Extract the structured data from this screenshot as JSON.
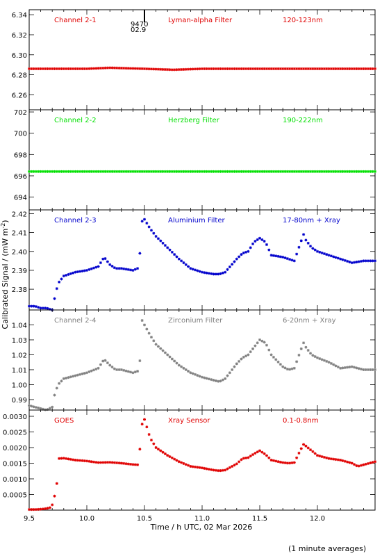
{
  "figure": {
    "xlabel": "Time / h UTC, 02 Mar 2026",
    "ylabel": "Calibrated Signal / (mW m",
    "ylabel_sup": "-2",
    "ylabel_close": ")",
    "footnote": "(1 minute averages)",
    "marker_labels": [
      "9470",
      "02.9"
    ]
  },
  "chart_data": [
    {
      "type": "scatter",
      "channel": "Channel 2-1",
      "filter": "Lyman-alpha Filter",
      "band": "120-123nm",
      "color": "#e00000",
      "xlim": [
        9.5,
        12.5
      ],
      "ylim": [
        6.245,
        6.345
      ],
      "yticks": [
        "6.26",
        "6.28",
        "6.30",
        "6.32",
        "6.34"
      ],
      "xticks": [
        "9.5",
        "10.0",
        "10.5",
        "11.0",
        "11.5",
        "12.0"
      ],
      "x": [
        9.5,
        9.75,
        10.0,
        10.2,
        10.5,
        10.75,
        11.0,
        11.25,
        11.5,
        11.75,
        12.0,
        12.25,
        12.5
      ],
      "y": [
        6.286,
        6.286,
        6.286,
        6.287,
        6.286,
        6.285,
        6.286,
        6.286,
        6.286,
        6.286,
        6.286,
        6.286,
        6.286
      ]
    },
    {
      "type": "scatter",
      "channel": "Channel 2-2",
      "filter": "Herzberg Filter",
      "band": "190-222nm",
      "color": "#00e000",
      "xlim": [
        9.5,
        12.5
      ],
      "ylim": [
        692.8,
        702.2
      ],
      "yticks": [
        "694",
        "696",
        "698",
        "700",
        "702"
      ],
      "xticks": [
        "9.5",
        "10.0",
        "10.5",
        "11.0",
        "11.5",
        "12.0"
      ],
      "x": [
        9.5,
        9.75,
        10.0,
        10.25,
        10.5,
        10.75,
        11.0,
        11.25,
        11.5,
        11.75,
        12.0,
        12.25,
        12.5
      ],
      "y": [
        696.4,
        696.4,
        696.4,
        696.4,
        696.4,
        696.4,
        696.4,
        696.4,
        696.4,
        696.4,
        696.4,
        696.4,
        696.4
      ]
    },
    {
      "type": "scatter",
      "channel": "Channel 2-3",
      "filter": "Aluminium Filter",
      "band": "17-80nm + Xray",
      "color": "#0000cc",
      "xlim": [
        9.5,
        12.5
      ],
      "ylim": [
        2.369,
        2.422
      ],
      "yticks": [
        "2.38",
        "2.39",
        "2.40",
        "2.41",
        "2.42"
      ],
      "xticks": [
        "9.5",
        "10.0",
        "10.5",
        "11.0",
        "11.5",
        "12.0"
      ],
      "x": [
        9.5,
        9.55,
        9.6,
        9.65,
        9.7,
        9.72,
        9.75,
        9.8,
        9.9,
        10.0,
        10.1,
        10.15,
        10.2,
        10.25,
        10.3,
        10.4,
        10.44,
        10.46,
        10.48,
        10.5,
        10.55,
        10.6,
        10.7,
        10.8,
        10.9,
        11.0,
        11.1,
        11.15,
        11.2,
        11.3,
        11.35,
        11.4,
        11.45,
        11.5,
        11.55,
        11.6,
        11.7,
        11.75,
        11.8,
        11.85,
        11.88,
        11.9,
        11.95,
        12.0,
        12.1,
        12.2,
        12.3,
        12.4,
        12.5
      ],
      "y": [
        2.371,
        2.371,
        2.37,
        2.37,
        2.369,
        2.375,
        2.383,
        2.387,
        2.389,
        2.39,
        2.392,
        2.397,
        2.393,
        2.391,
        2.391,
        2.39,
        2.391,
        2.399,
        2.416,
        2.417,
        2.412,
        2.408,
        2.402,
        2.396,
        2.391,
        2.389,
        2.388,
        2.388,
        2.389,
        2.396,
        2.399,
        2.4,
        2.405,
        2.407,
        2.405,
        2.398,
        2.397,
        2.396,
        2.395,
        2.404,
        2.409,
        2.406,
        2.402,
        2.4,
        2.398,
        2.396,
        2.394,
        2.395,
        2.395
      ]
    },
    {
      "type": "scatter",
      "channel": "Channel 2-4",
      "filter": "Zirconium Filter",
      "band": "6-20nm + Xray",
      "color": "#808080",
      "xlim": [
        9.5,
        12.5
      ],
      "ylim": [
        0.983,
        1.05
      ],
      "yticks": [
        "0.99",
        "1.00",
        "1.01",
        "1.02",
        "1.03",
        "1.04"
      ],
      "xticks": [
        "9.5",
        "10.0",
        "10.5",
        "11.0",
        "11.5",
        "12.0"
      ],
      "x": [
        9.5,
        9.55,
        9.6,
        9.65,
        9.7,
        9.72,
        9.75,
        9.8,
        9.9,
        10.0,
        10.1,
        10.15,
        10.2,
        10.25,
        10.3,
        10.4,
        10.44,
        10.46,
        10.48,
        10.5,
        10.55,
        10.6,
        10.7,
        10.8,
        10.9,
        11.0,
        11.1,
        11.15,
        11.2,
        11.3,
        11.35,
        11.4,
        11.45,
        11.5,
        11.55,
        11.6,
        11.7,
        11.75,
        11.8,
        11.85,
        11.88,
        11.9,
        11.95,
        12.0,
        12.1,
        12.2,
        12.3,
        12.4,
        12.5
      ],
      "y": [
        0.986,
        0.985,
        0.984,
        0.983,
        0.985,
        0.993,
        1.0,
        1.004,
        1.006,
        1.008,
        1.011,
        1.017,
        1.013,
        1.01,
        1.01,
        1.008,
        1.009,
        1.016,
        1.043,
        1.04,
        1.033,
        1.027,
        1.02,
        1.013,
        1.008,
        1.005,
        1.003,
        1.002,
        1.004,
        1.014,
        1.018,
        1.02,
        1.025,
        1.03,
        1.028,
        1.02,
        1.012,
        1.01,
        1.011,
        1.022,
        1.028,
        1.025,
        1.02,
        1.018,
        1.015,
        1.011,
        1.012,
        1.01,
        1.01
      ]
    },
    {
      "type": "scatter",
      "channel": "GOES",
      "filter": "Xray Sensor",
      "band": "0.1-0.8nm",
      "color": "#e00000",
      "xlim": [
        9.5,
        12.5
      ],
      "ylim": [
        0.0,
        0.0032
      ],
      "yticks": [
        "0.0005",
        "0.0010",
        "0.0015",
        "0.0020",
        "0.0025",
        "0.0030"
      ],
      "xticks": [
        "9.5",
        "10.0",
        "10.5",
        "11.0",
        "11.5",
        "12.0"
      ],
      "x": [
        9.5,
        9.55,
        9.6,
        9.65,
        9.68,
        9.7,
        9.72,
        9.74,
        9.76,
        9.8,
        9.9,
        10.0,
        10.1,
        10.2,
        10.3,
        10.4,
        10.44,
        10.46,
        10.48,
        10.5,
        10.55,
        10.6,
        10.7,
        10.8,
        10.9,
        11.0,
        11.1,
        11.15,
        11.2,
        11.3,
        11.35,
        11.4,
        11.45,
        11.5,
        11.55,
        11.6,
        11.7,
        11.75,
        11.8,
        11.85,
        11.88,
        11.9,
        11.95,
        12.0,
        12.1,
        12.2,
        12.3,
        12.35,
        12.4,
        12.5
      ],
      "y": [
        2e-05,
        2e-05,
        3e-05,
        5e-05,
        8e-05,
        0.00017,
        0.00045,
        0.00085,
        0.00165,
        0.00166,
        0.0016,
        0.00157,
        0.00152,
        0.00153,
        0.0015,
        0.00146,
        0.00145,
        0.00195,
        0.00275,
        0.0029,
        0.0023,
        0.002,
        0.00175,
        0.00155,
        0.0014,
        0.00135,
        0.00128,
        0.00126,
        0.00128,
        0.00148,
        0.00165,
        0.00168,
        0.0018,
        0.0019,
        0.00178,
        0.0016,
        0.00152,
        0.0015,
        0.00152,
        0.0019,
        0.0021,
        0.00205,
        0.0019,
        0.00175,
        0.00165,
        0.0016,
        0.0015,
        0.0014,
        0.00145,
        0.00155
      ]
    }
  ]
}
